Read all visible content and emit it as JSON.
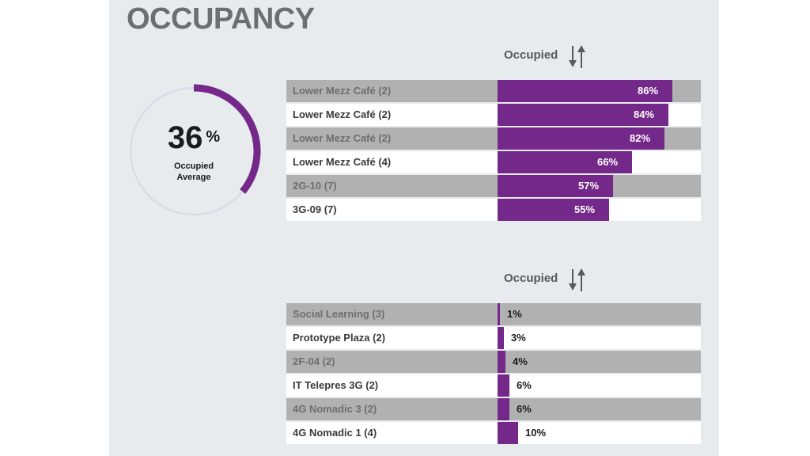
{
  "page": {
    "title": "OCCUPANCY"
  },
  "gauge": {
    "value": "36",
    "unit": "%",
    "label_line1": "Occupied",
    "label_line2": "Average",
    "percent": 36,
    "track_color": "#d9dce6",
    "fill_color": "#74288a"
  },
  "top_table": {
    "sort_label": "Occupied",
    "sort_icon": "sort-arrows-icon"
  },
  "bottom_table": {
    "sort_label": "Occupied",
    "sort_icon": "sort-arrows-icon"
  },
  "colors": {
    "bar": "#74288a",
    "row_shaded": "#b1b1b1",
    "row_plain": "#ffffff",
    "panel": "#e8ebee"
  },
  "chart_data": [
    {
      "type": "bar",
      "orientation": "horizontal",
      "categories": [
        "Lower Mezz Café (2)",
        "Lower Mezz Café (2)",
        "Lower Mezz Café (2)",
        "Lower Mezz Café (4)",
        "2G-10 (7)",
        "3G-09 (7)"
      ],
      "values": [
        86,
        84,
        82,
        66,
        57,
        55
      ],
      "value_labels": [
        "86%",
        "84%",
        "82%",
        "66%",
        "57%",
        "55%"
      ],
      "xlim": [
        0,
        100
      ]
    },
    {
      "type": "bar",
      "orientation": "horizontal",
      "categories": [
        "Social Learning (3)",
        "Prototype Plaza (2)",
        "2F-04 (2)",
        "IT Telepres 3G (2)",
        "4G Nomadic 3 (2)",
        "4G Nomadic 1 (4)"
      ],
      "values": [
        1,
        3,
        4,
        6,
        6,
        10
      ],
      "value_labels": [
        "1%",
        "3%",
        "4%",
        "6%",
        "6%",
        "10%"
      ],
      "xlim": [
        0,
        100
      ]
    }
  ]
}
